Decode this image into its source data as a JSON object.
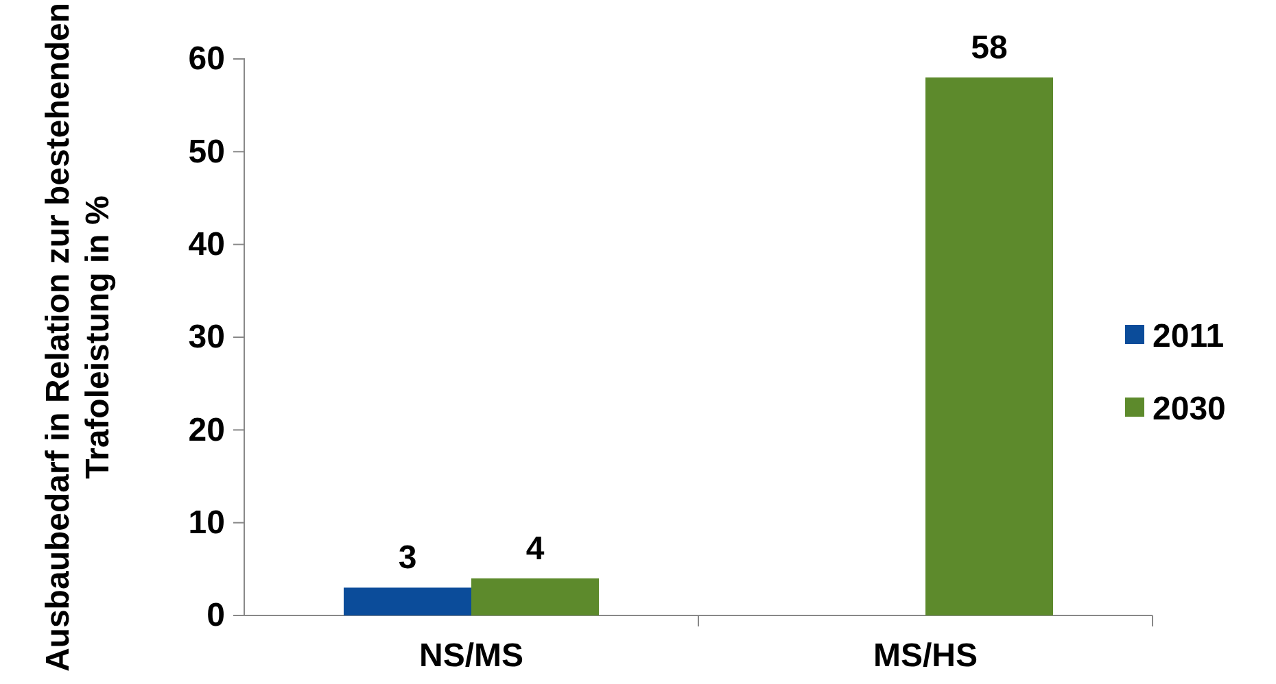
{
  "chart_data": {
    "type": "bar",
    "ylabel": "Ausbaubedarf in Relation zur bestehenden Trafoleistung in %",
    "categories": [
      "NS/MS",
      "MS/HS"
    ],
    "series": [
      {
        "name": "2011",
        "color": "#0b4c9a",
        "values": [
          3,
          null
        ]
      },
      {
        "name": "2030",
        "color": "#5d8a2c",
        "values": [
          4,
          58
        ]
      }
    ],
    "ylim": [
      0,
      60
    ],
    "yticks": [
      0,
      10,
      20,
      30,
      40,
      50,
      60
    ],
    "grid": false,
    "legend": "right",
    "data_labels": true
  }
}
